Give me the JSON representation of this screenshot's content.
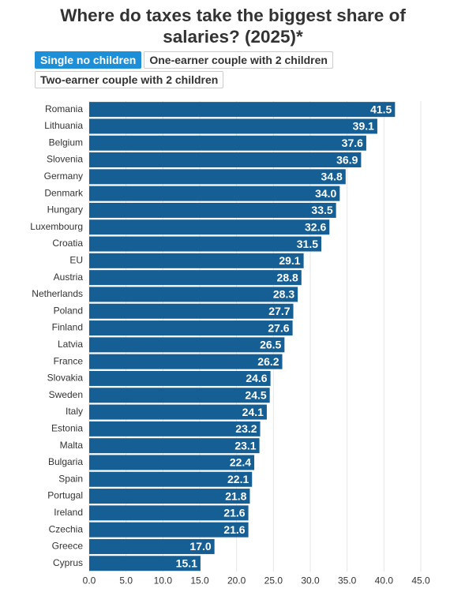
{
  "chart_data": {
    "type": "hbar",
    "title": "Where do taxes take the biggest share of salaries? (2025)*",
    "tabs": [
      "Single no children",
      "One-earner couple with 2 children",
      "Two-earner couple with 2 children"
    ],
    "categories": [
      "Romania",
      "Lithuania",
      "Belgium",
      "Slovenia",
      "Germany",
      "Denmark",
      "Hungary",
      "Luxembourg",
      "Croatia",
      "EU",
      "Austria",
      "Netherlands",
      "Poland",
      "Finland",
      "Latvia",
      "France",
      "Slovakia",
      "Sweden",
      "Italy",
      "Estonia",
      "Malta",
      "Bulgaria",
      "Spain",
      "Portugal",
      "Ireland",
      "Czechia",
      "Greece",
      "Cyprus"
    ],
    "values": [
      41.5,
      39.1,
      37.6,
      36.9,
      34.8,
      34.0,
      33.5,
      32.6,
      31.5,
      29.1,
      28.8,
      28.3,
      27.7,
      27.6,
      26.5,
      26.2,
      24.6,
      24.5,
      24.1,
      23.2,
      23.1,
      22.4,
      22.1,
      21.8,
      21.6,
      21.6,
      17.0,
      15.1
    ],
    "value_labels": [
      "41.5",
      "39.1",
      "37.6",
      "36.9",
      "34.8",
      "34.0",
      "33.5",
      "32.6",
      "31.5",
      "29.1",
      "28.8",
      "28.3",
      "27.7",
      "27.6",
      "26.5",
      "26.2",
      "24.6",
      "24.5",
      "24.1",
      "23.2",
      "23.1",
      "22.4",
      "22.1",
      "21.8",
      "21.6",
      "21.6",
      "17.0",
      "15.1"
    ],
    "color": "#165f94",
    "xlim": [
      0,
      45
    ],
    "xticks": [
      {
        "value": 0,
        "label": "0.0"
      },
      {
        "value": 5,
        "label": "5.0"
      },
      {
        "value": 10,
        "label": "10.0"
      },
      {
        "value": 15,
        "label": "15.0"
      },
      {
        "value": 20,
        "label": "20.0"
      },
      {
        "value": 25,
        "label": "25.0"
      },
      {
        "value": 30,
        "label": "30.0"
      },
      {
        "value": 35,
        "label": "35.0"
      },
      {
        "value": 40,
        "label": "40.0"
      },
      {
        "value": 45,
        "label": "45.0"
      }
    ],
    "grid": true
  }
}
